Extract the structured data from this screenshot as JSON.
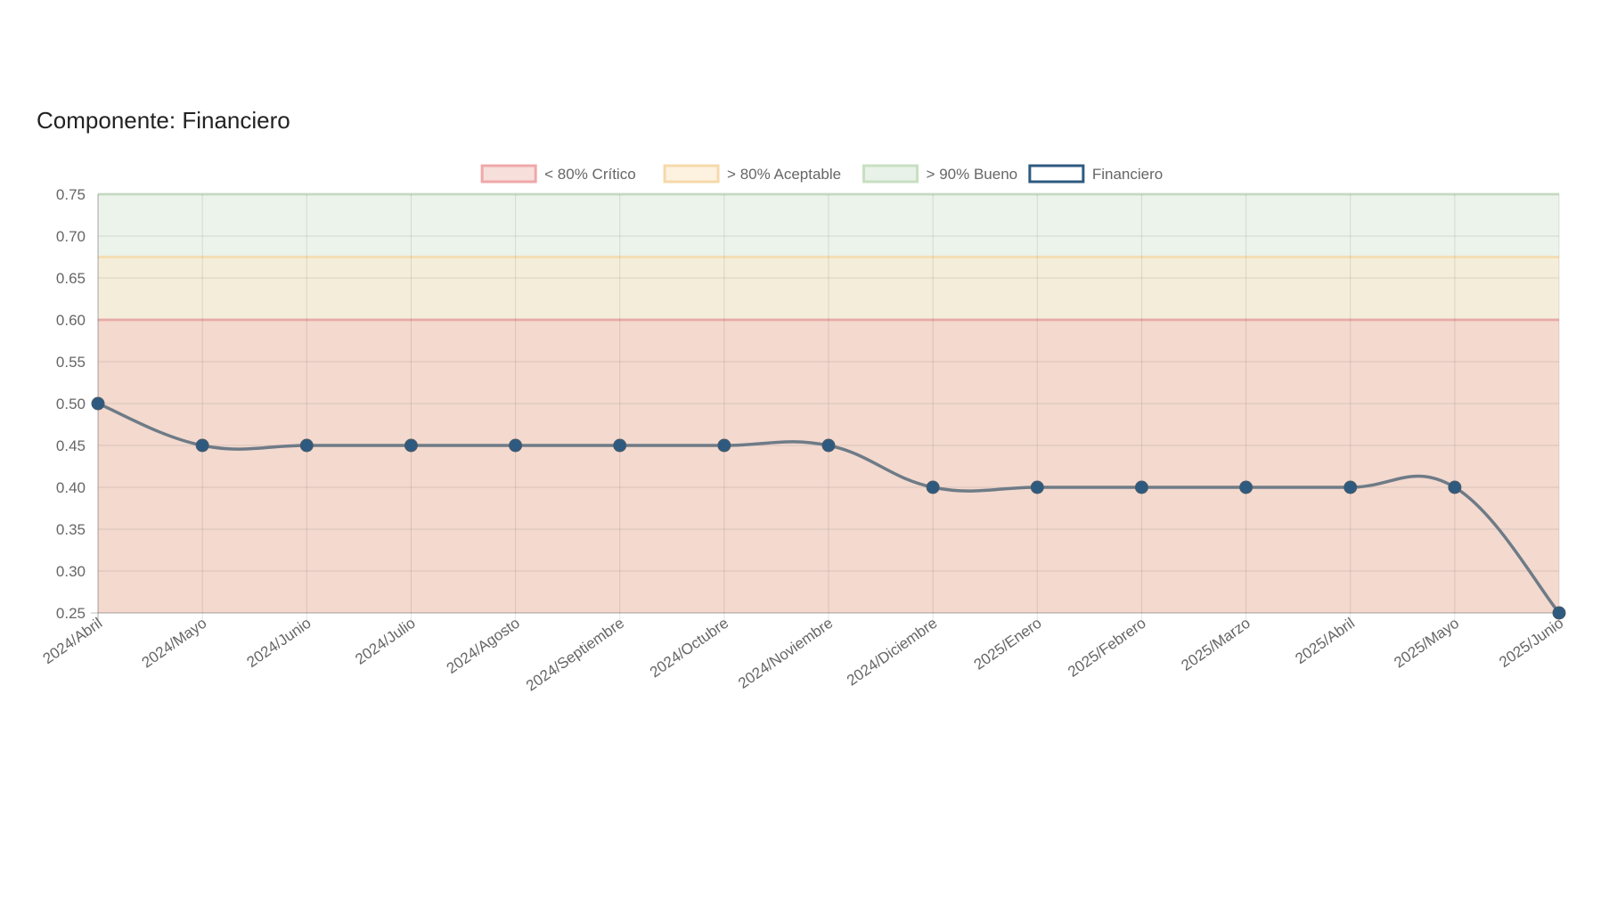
{
  "title": "Componente: Financiero",
  "chart_data": {
    "type": "line",
    "categories": [
      "2024/Abril",
      "2024/Mayo",
      "2024/Junio",
      "2024/Julio",
      "2024/Agosto",
      "2024/Septiembre",
      "2024/Octubre",
      "2024/Noviembre",
      "2024/Diciembre",
      "2025/Enero",
      "2025/Febrero",
      "2025/Marzo",
      "2025/Abril",
      "2025/Mayo",
      "2025/Junio"
    ],
    "series": [
      {
        "name": "Financiero",
        "values": [
          0.5,
          0.45,
          0.45,
          0.45,
          0.45,
          0.45,
          0.45,
          0.45,
          0.4,
          0.4,
          0.4,
          0.4,
          0.4,
          0.4,
          0.25
        ],
        "color": "#2f5a80",
        "line_color": "#6e7b87"
      }
    ],
    "bands": [
      {
        "name": "< 80% Crítico",
        "threshold": 0.6,
        "fill": "#f2c9c4",
        "border": "#f0a8a8"
      },
      {
        "name": "> 80% Aceptable",
        "threshold": 0.675,
        "fill": "#fbe7cc",
        "border": "#f5d9aa"
      },
      {
        "name": "> 90% Bueno",
        "threshold": 0.75,
        "fill": "#dbead8",
        "border": "#c7dfc2"
      }
    ],
    "legend": [
      "< 80% Crítico",
      "> 80% Aceptable",
      "> 90% Bueno",
      "Financiero"
    ],
    "legend_position": "top",
    "ylim": [
      0.25,
      0.75
    ],
    "yticks": [
      "0.75",
      "0.70",
      "0.65",
      "0.60",
      "0.55",
      "0.50",
      "0.45",
      "0.40",
      "0.35",
      "0.30",
      "0.25"
    ],
    "grid": true,
    "xlabel": "",
    "ylabel": ""
  }
}
